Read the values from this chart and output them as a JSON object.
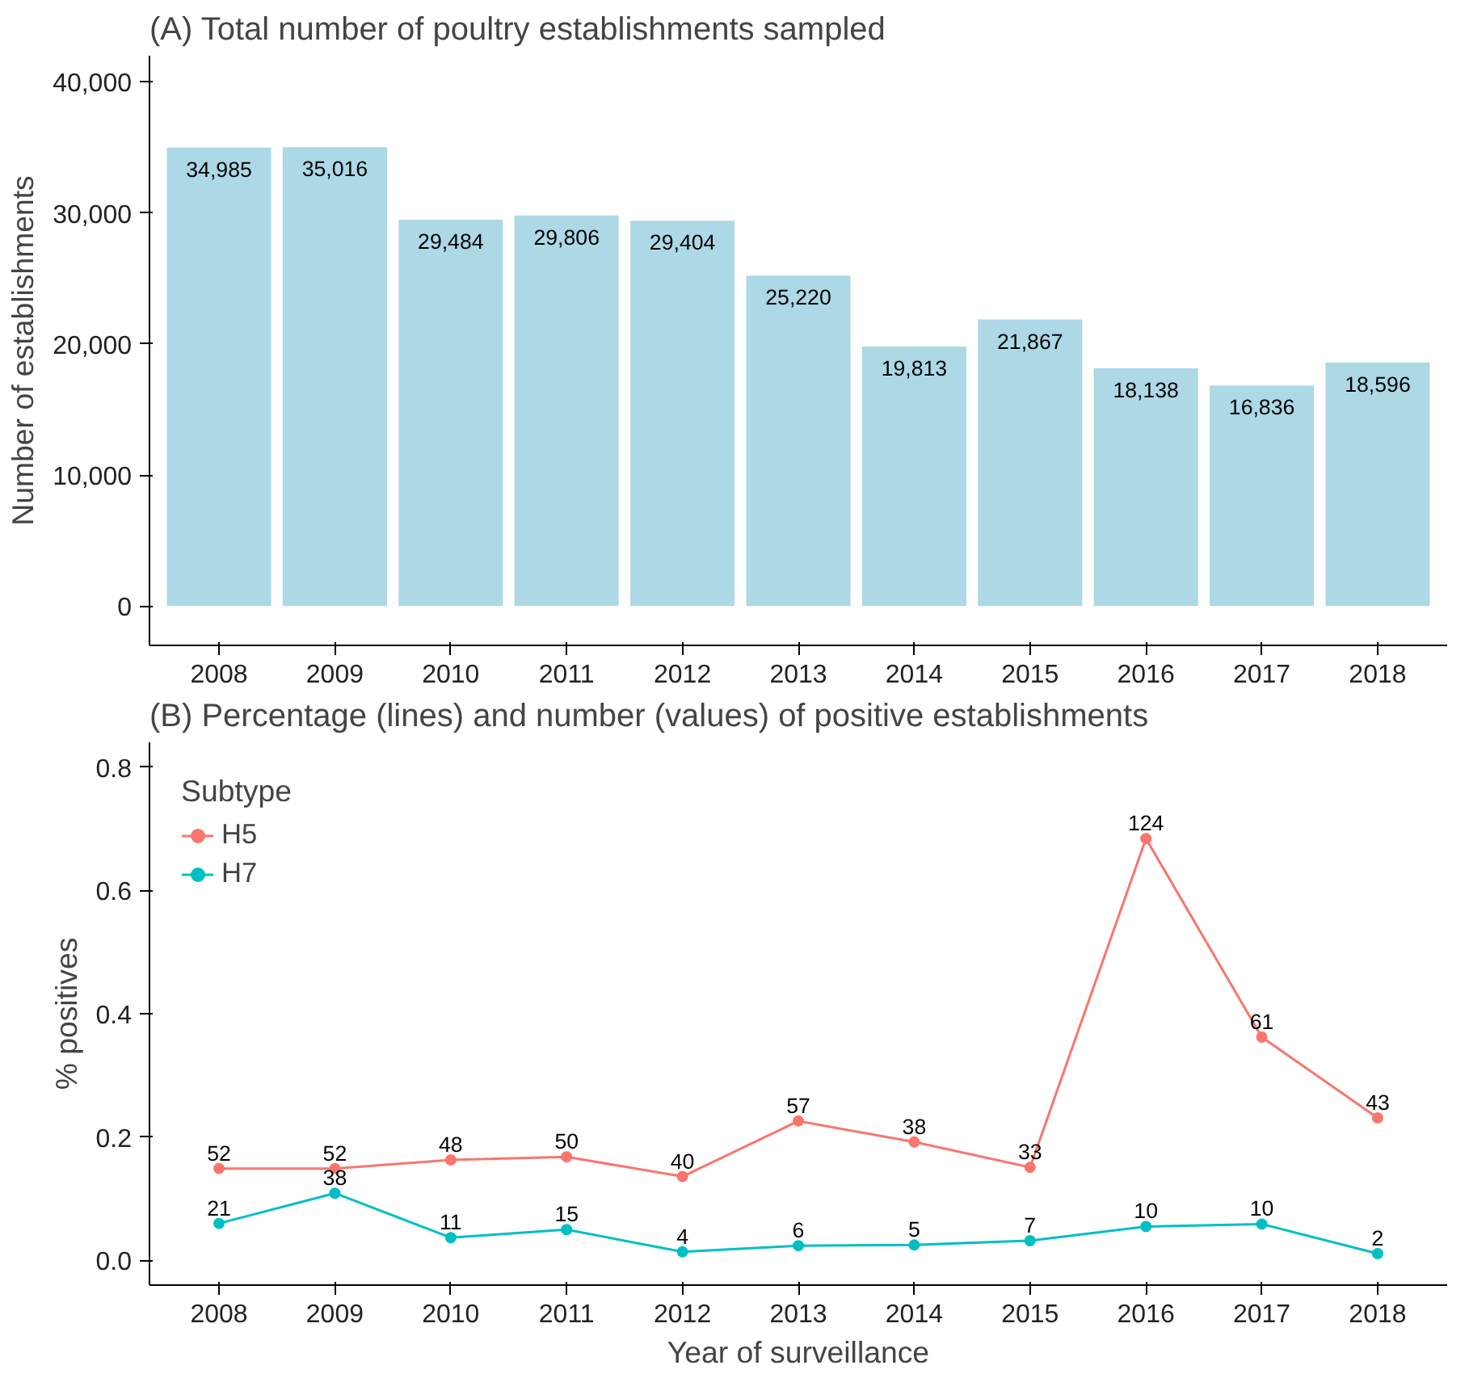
{
  "chart_data": [
    {
      "type": "bar",
      "title": "(A) Total number of poultry establishments sampled",
      "ylabel": "Number of establishments",
      "categories": [
        "2008",
        "2009",
        "2010",
        "2011",
        "2012",
        "2013",
        "2014",
        "2015",
        "2016",
        "2017",
        "2018"
      ],
      "values": [
        34985,
        35016,
        29484,
        29806,
        29404,
        25220,
        19813,
        21867,
        18138,
        16836,
        18596
      ],
      "color": "#add8e6",
      "value_labels": [
        "34,985",
        "35,016",
        "29,484",
        "29,806",
        "29,404",
        "25,220",
        "19,813",
        "21,867",
        "18,138",
        "16,836",
        "18,596"
      ],
      "ylim": [
        -3000,
        42000
      ],
      "yticks": [
        {
          "value": 0,
          "label": "0"
        },
        {
          "value": 10000,
          "label": "10,000"
        },
        {
          "value": 20000,
          "label": "20,000"
        },
        {
          "value": 30000,
          "label": "30,000"
        },
        {
          "value": 40000,
          "label": "40,000"
        }
      ],
      "grid": false
    },
    {
      "type": "line",
      "title": "(B) Percentage (lines) and number (values) of positive establishments",
      "xlabel": "Year of surveillance",
      "ylabel": "% positives",
      "legend_title": "Subtype",
      "categories": [
        "2008",
        "2009",
        "2010",
        "2011",
        "2012",
        "2013",
        "2014",
        "2015",
        "2016",
        "2017",
        "2018"
      ],
      "series": [
        {
          "name": "H5",
          "color": "#f8766d",
          "values": [
            0.149,
            0.149,
            0.163,
            0.168,
            0.136,
            0.226,
            0.192,
            0.151,
            0.684,
            0.362,
            0.231
          ]
        },
        {
          "name": "H7",
          "color": "#00bfc4",
          "values": [
            0.06,
            0.109,
            0.037,
            0.05,
            0.014,
            0.024,
            0.025,
            0.032,
            0.055,
            0.059,
            0.011
          ]
        }
      ],
      "annotations": [
        {
          "text": "52",
          "x": "2008",
          "y": 0.149
        },
        {
          "text": "52",
          "x": "2009",
          "y": 0.149
        },
        {
          "text": "48",
          "x": "2010",
          "y": 0.163
        },
        {
          "text": "50",
          "x": "2011",
          "y": 0.168
        },
        {
          "text": "40",
          "x": "2012",
          "y": 0.136
        },
        {
          "text": "57",
          "x": "2013",
          "y": 0.226
        },
        {
          "text": "38",
          "x": "2014",
          "y": 0.192
        },
        {
          "text": "33",
          "x": "2015",
          "y": 0.151
        },
        {
          "text": "124",
          "x": "2016",
          "y": 0.684
        },
        {
          "text": "61",
          "x": "2017",
          "y": 0.362
        },
        {
          "text": "43",
          "x": "2018",
          "y": 0.231
        },
        {
          "text": "21",
          "x": "2008",
          "y": 0.06
        },
        {
          "text": "38",
          "x": "2009",
          "y": 0.109
        },
        {
          "text": "11",
          "x": "2010",
          "y": 0.037
        },
        {
          "text": "15",
          "x": "2011",
          "y": 0.05
        },
        {
          "text": "4",
          "x": "2012",
          "y": 0.014
        },
        {
          "text": "6",
          "x": "2013",
          "y": 0.024
        },
        {
          "text": "5",
          "x": "2014",
          "y": 0.025
        },
        {
          "text": "7",
          "x": "2015",
          "y": 0.032
        },
        {
          "text": "10",
          "x": "2016",
          "y": 0.055
        },
        {
          "text": "10",
          "x": "2017",
          "y": 0.059
        },
        {
          "text": "2",
          "x": "2018",
          "y": 0.011
        }
      ],
      "ylim": [
        -0.04,
        0.84
      ],
      "yticks": [
        {
          "value": 0,
          "label": "0.0"
        },
        {
          "value": 0.2,
          "label": "0.2"
        },
        {
          "value": 0.4,
          "label": "0.4"
        },
        {
          "value": 0.6,
          "label": "0.6"
        },
        {
          "value": 0.8,
          "label": "0.8"
        }
      ],
      "grid": false,
      "legend": "top left",
      "marker": "circle",
      "line_style": "solid"
    }
  ]
}
